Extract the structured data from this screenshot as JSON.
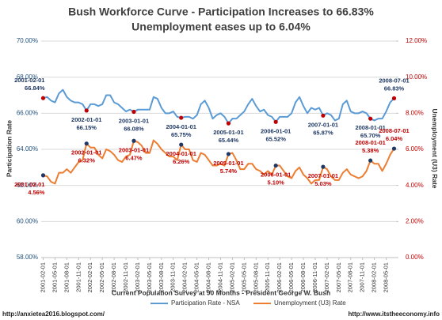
{
  "chart_data": {
    "type": "line",
    "title": [
      "Bush Workforce Curve - Participation Increases to 66.83%",
      "Unemployment eases up to 6.04%"
    ],
    "x_label": "Current Population Survey at 90 Months - President George W. Bush",
    "y_label": "Participation Rate",
    "y2_label": "Unemployment (U3) Rate",
    "footer_left": "http://anxietea2016.blogspot.com/",
    "footer_right": "http://www.itstheeconomy.info",
    "grid": true,
    "legend": "bottom",
    "ylim": [
      58,
      70
    ],
    "yticks": [
      {
        "value": 58,
        "label": "58.00%"
      },
      {
        "value": 60,
        "label": "60.00%"
      },
      {
        "value": 62,
        "label": "62.00%"
      },
      {
        "value": 64,
        "label": "64.00%"
      },
      {
        "value": 66,
        "label": "66.00%"
      },
      {
        "value": 68,
        "label": "68.00%"
      },
      {
        "value": 70,
        "label": "70.00%"
      }
    ],
    "y2lim": [
      0,
      12
    ],
    "y2ticks": [
      {
        "value": 0,
        "label": "0.00%"
      },
      {
        "value": 2,
        "label": "2.00%"
      },
      {
        "value": 4,
        "label": "4.00%"
      },
      {
        "value": 6,
        "label": "6.00%"
      },
      {
        "value": 8,
        "label": "8.00%"
      },
      {
        "value": 10,
        "label": "10.00%"
      },
      {
        "value": 12,
        "label": "12.00%"
      }
    ],
    "yaxis_color": "#1f4e79",
    "y2axis_color": "#c00000",
    "categories": [
      "2001-02-01",
      null,
      null,
      "2001-05-01",
      null,
      null,
      "2001-08-01",
      null,
      null,
      "2001-11-01",
      null,
      null,
      "2002-02-01",
      null,
      null,
      "2002-05-01",
      null,
      null,
      "2002-08-01",
      null,
      null,
      "2002-11-01",
      null,
      null,
      "2003-02-01",
      null,
      null,
      "2003-05-01",
      null,
      null,
      "2003-08-01",
      null,
      null,
      "2003-11-01",
      null,
      null,
      "2004-02-01",
      null,
      null,
      "2004-05-01",
      null,
      null,
      "2004-08-01",
      null,
      null,
      "2004-11-01",
      null,
      null,
      "2005-02-01",
      null,
      null,
      "2005-05-01",
      null,
      null,
      "2005-08-01",
      null,
      null,
      "2005-11-01",
      null,
      null,
      "2006-02-01",
      null,
      null,
      "2006-05-01",
      null,
      null,
      "2006-08-01",
      null,
      null,
      "2006-11-01",
      null,
      null,
      "2007-02-01",
      null,
      null,
      "2007-05-01",
      null,
      null,
      "2007-08-01",
      null,
      null,
      "2007-11-01",
      null,
      null,
      "2008-02-01",
      null,
      null,
      "2008-05-01",
      null,
      null
    ],
    "annotation_dates": [
      "2001-02-01",
      null,
      null,
      null,
      null,
      null,
      null,
      null,
      null,
      null,
      null,
      "2002-01-01",
      null,
      null,
      null,
      null,
      null,
      null,
      null,
      null,
      null,
      null,
      null,
      "2003-01-01",
      null,
      null,
      null,
      null,
      null,
      null,
      null,
      null,
      null,
      null,
      null,
      "2004-01-01",
      null,
      null,
      null,
      null,
      null,
      null,
      null,
      null,
      null,
      null,
      null,
      "2005-01-01",
      null,
      null,
      null,
      null,
      null,
      null,
      null,
      null,
      null,
      null,
      null,
      "2006-01-01",
      null,
      null,
      null,
      null,
      null,
      null,
      null,
      null,
      null,
      null,
      null,
      "2007-01-01",
      null,
      null,
      null,
      null,
      null,
      null,
      null,
      null,
      null,
      null,
      null,
      "2008-01-01",
      null,
      null,
      null,
      null,
      null,
      "2008-07-01"
    ],
    "series": [
      {
        "name": "Participation Rate - NSA",
        "color": "#5b9bd5",
        "marker_color": "#c00000",
        "label_color": "#1f3864",
        "axis": "y",
        "values": [
          66.84,
          66.9,
          66.7,
          66.6,
          67.1,
          67.3,
          66.9,
          66.7,
          66.6,
          66.6,
          66.5,
          66.15,
          66.5,
          66.5,
          66.4,
          66.5,
          67.0,
          67.0,
          66.6,
          66.5,
          66.3,
          66.1,
          66.2,
          66.08,
          66.2,
          66.2,
          66.2,
          66.2,
          66.9,
          66.8,
          66.3,
          66.0,
          66.0,
          66.1,
          65.8,
          65.75,
          65.8,
          65.8,
          65.7,
          65.9,
          66.5,
          66.7,
          66.3,
          65.7,
          65.9,
          66.0,
          65.8,
          65.44,
          65.7,
          65.7,
          65.9,
          66.1,
          66.5,
          66.8,
          66.4,
          66.1,
          66.2,
          65.9,
          65.8,
          65.52,
          65.8,
          65.8,
          65.8,
          66.0,
          66.6,
          66.9,
          66.4,
          66.0,
          66.3,
          66.2,
          66.3,
          65.87,
          66.0,
          65.9,
          65.6,
          65.7,
          66.5,
          66.7,
          66.1,
          66.0,
          66.0,
          66.1,
          66.0,
          65.7,
          65.6,
          65.7,
          65.7,
          66.1,
          66.6,
          66.83
        ],
        "value_labels": [
          "66.84%",
          null,
          null,
          null,
          null,
          null,
          null,
          null,
          null,
          null,
          null,
          "66.15%",
          null,
          null,
          null,
          null,
          null,
          null,
          null,
          null,
          null,
          null,
          null,
          "66.08%",
          null,
          null,
          null,
          null,
          null,
          null,
          null,
          null,
          null,
          null,
          null,
          "65.75%",
          null,
          null,
          null,
          null,
          null,
          null,
          null,
          null,
          null,
          null,
          null,
          "65.44%",
          null,
          null,
          null,
          null,
          null,
          null,
          null,
          null,
          null,
          null,
          null,
          "65.52%",
          null,
          null,
          null,
          null,
          null,
          null,
          null,
          null,
          null,
          null,
          null,
          "65.87%",
          null,
          null,
          null,
          null,
          null,
          null,
          null,
          null,
          null,
          null,
          null,
          "65.70%",
          null,
          null,
          null,
          null,
          null,
          "66.83%"
        ]
      },
      {
        "name": "Unemployment (U3) Rate",
        "color": "#ed7d31",
        "marker_color": "#1f3864",
        "label_color": "#c00000",
        "axis": "y2",
        "values": [
          4.56,
          4.5,
          4.2,
          4.1,
          4.7,
          4.7,
          4.9,
          4.7,
          5.0,
          5.3,
          5.4,
          6.32,
          6.1,
          6.1,
          5.7,
          5.5,
          6.0,
          5.9,
          5.7,
          5.4,
          5.3,
          5.6,
          5.7,
          6.47,
          6.4,
          6.2,
          5.8,
          5.8,
          6.5,
          6.3,
          6.0,
          5.8,
          5.6,
          5.6,
          5.4,
          6.26,
          6.0,
          6.0,
          5.4,
          5.3,
          5.8,
          5.7,
          5.4,
          5.1,
          5.1,
          5.2,
          5.1,
          5.74,
          5.8,
          5.4,
          4.9,
          4.9,
          5.2,
          5.2,
          4.9,
          4.8,
          4.6,
          4.8,
          4.6,
          5.1,
          5.1,
          4.8,
          4.5,
          4.4,
          4.8,
          5.0,
          4.6,
          4.4,
          4.1,
          4.3,
          4.3,
          5.03,
          4.9,
          4.5,
          4.3,
          4.3,
          4.7,
          4.9,
          4.6,
          4.5,
          4.4,
          4.5,
          4.8,
          5.38,
          5.2,
          5.2,
          4.8,
          5.2,
          5.7,
          6.04
        ],
        "value_labels": [
          "4.56%",
          null,
          null,
          null,
          null,
          null,
          null,
          null,
          null,
          null,
          null,
          "6.32%",
          null,
          null,
          null,
          null,
          null,
          null,
          null,
          null,
          null,
          null,
          null,
          "6.47%",
          null,
          null,
          null,
          null,
          null,
          null,
          null,
          null,
          null,
          null,
          null,
          "6.26%",
          null,
          null,
          null,
          null,
          null,
          null,
          null,
          null,
          null,
          null,
          null,
          "5.74%",
          null,
          null,
          null,
          null,
          null,
          null,
          null,
          null,
          null,
          null,
          null,
          "5.10%",
          null,
          null,
          null,
          null,
          null,
          null,
          null,
          null,
          null,
          null,
          null,
          "5.03%",
          null,
          null,
          null,
          null,
          null,
          null,
          null,
          null,
          null,
          null,
          null,
          "5.38%",
          null,
          null,
          null,
          null,
          null,
          "6.04%"
        ]
      }
    ]
  }
}
